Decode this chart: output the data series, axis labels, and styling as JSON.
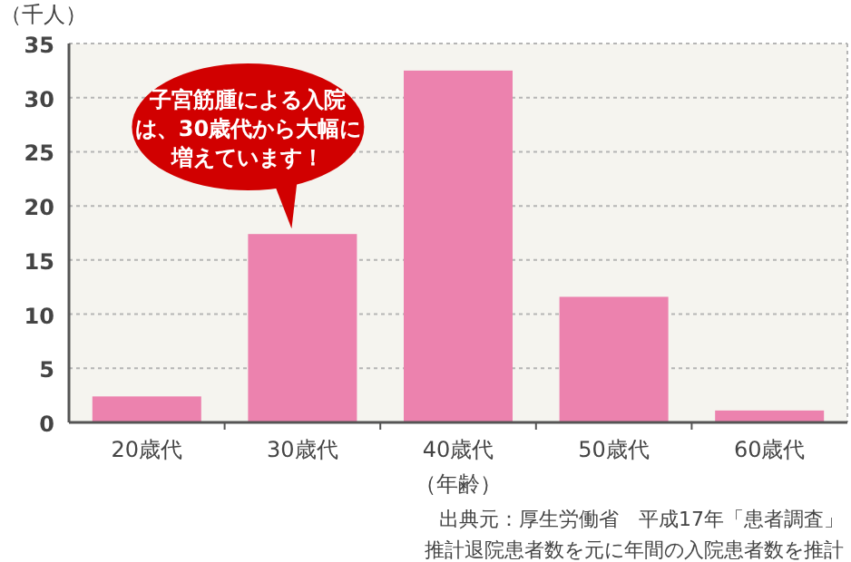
{
  "chart_data": {
    "type": "bar",
    "ylabel": "（千人）",
    "xlabel": "（年齢）",
    "categories": [
      "20歳代",
      "30歳代",
      "40歳代",
      "50歳代",
      "60歳代"
    ],
    "values": [
      2.4,
      17.4,
      32.5,
      11.6,
      1.1
    ],
    "color": "#ec82ae",
    "ylim": [
      0,
      35
    ],
    "yticks": [
      0,
      5,
      10,
      15,
      20,
      25,
      30,
      35
    ],
    "grid": "y",
    "annotations": [
      "子宮筋腫による入院は、30歳代から大幅に増えています！",
      "出典元：厚生労働省　平成17年「患者調査」",
      "推計退院患者数を元に年間の入院患者数を推計"
    ]
  }
}
